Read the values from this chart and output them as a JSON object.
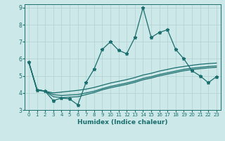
{
  "xlabel": "Humidex (Indice chaleur)",
  "bg_color": "#cce8e8",
  "line_color": "#1a6e6e",
  "grid_color": "#b0d0d0",
  "xlim": [
    -0.5,
    23.5
  ],
  "ylim": [
    3,
    9.2
  ],
  "yticks": [
    3,
    4,
    5,
    6,
    7,
    8,
    9
  ],
  "xticks": [
    0,
    1,
    2,
    3,
    4,
    5,
    6,
    7,
    8,
    9,
    10,
    11,
    12,
    13,
    14,
    15,
    16,
    17,
    18,
    19,
    20,
    21,
    22,
    23
  ],
  "series1_x": [
    0,
    1,
    2,
    3,
    4,
    5,
    6,
    7,
    8,
    9,
    10,
    11,
    12,
    13,
    14,
    15,
    16,
    17,
    18,
    19,
    20,
    21,
    22,
    23
  ],
  "series1_y": [
    5.8,
    4.15,
    4.1,
    3.55,
    3.7,
    3.65,
    3.3,
    4.6,
    5.4,
    6.55,
    7.0,
    6.5,
    6.3,
    7.25,
    9.0,
    7.25,
    7.55,
    7.7,
    6.55,
    6.0,
    5.3,
    5.0,
    4.6,
    4.95
  ],
  "series2_x": [
    0,
    1,
    2,
    3,
    4,
    5,
    6,
    7,
    8,
    9,
    10,
    11,
    12,
    13,
    14,
    15,
    16,
    17,
    18,
    19,
    20,
    21,
    22,
    23
  ],
  "series2_y": [
    5.8,
    4.2,
    4.1,
    4.0,
    4.05,
    4.1,
    4.15,
    4.22,
    4.32,
    4.45,
    4.58,
    4.68,
    4.78,
    4.9,
    5.05,
    5.15,
    5.28,
    5.38,
    5.48,
    5.55,
    5.62,
    5.68,
    5.72,
    5.75
  ],
  "series3_x": [
    0,
    1,
    2,
    3,
    4,
    5,
    6,
    7,
    8,
    9,
    10,
    11,
    12,
    13,
    14,
    15,
    16,
    17,
    18,
    19,
    20,
    21,
    22,
    23
  ],
  "series3_y": [
    5.8,
    4.2,
    4.1,
    3.9,
    3.85,
    3.88,
    3.9,
    4.0,
    4.1,
    4.25,
    4.38,
    4.48,
    4.58,
    4.7,
    4.85,
    4.95,
    5.08,
    5.18,
    5.28,
    5.38,
    5.45,
    5.5,
    5.55,
    5.58
  ],
  "series4_x": [
    0,
    1,
    2,
    3,
    4,
    5,
    6,
    7,
    8,
    9,
    10,
    11,
    12,
    13,
    14,
    15,
    16,
    17,
    18,
    19,
    20,
    21,
    22,
    23
  ],
  "series4_y": [
    5.8,
    4.2,
    4.1,
    3.78,
    3.72,
    3.75,
    3.78,
    3.9,
    4.02,
    4.18,
    4.3,
    4.4,
    4.5,
    4.62,
    4.77,
    4.87,
    5.0,
    5.1,
    5.2,
    5.3,
    5.37,
    5.42,
    5.47,
    5.5
  ],
  "marker": "*",
  "markersize": 3.5,
  "linewidth": 0.9
}
